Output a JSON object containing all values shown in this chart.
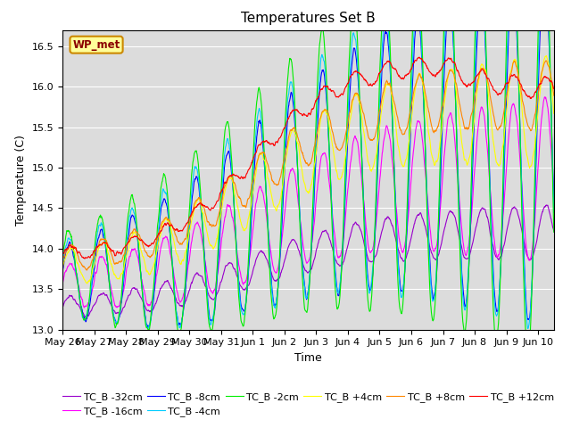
{
  "title": "Temperatures Set B",
  "xlabel": "Time",
  "ylabel": "Temperature (C)",
  "ylim": [
    13.0,
    16.7
  ],
  "xtick_labels": [
    "May 26",
    "May 27",
    "May 28",
    "May 29",
    "May 30",
    "May 31",
    "Jun 1",
    "Jun 2",
    "Jun 3",
    "Jun 4",
    "Jun 5",
    "Jun 6",
    "Jun 7",
    "Jun 8",
    "Jun 9",
    "Jun 10"
  ],
  "series": [
    {
      "label": "TC_B -32cm",
      "color": "#9900cc",
      "base": 13.25,
      "final": 14.2,
      "osc_amp": 0.12,
      "osc_growth": 0.03,
      "delay": 0.0,
      "noise": 0.02
    },
    {
      "label": "TC_B -16cm",
      "color": "#ff00ff",
      "base": 13.5,
      "final": 14.85,
      "osc_amp": 0.25,
      "osc_growth": 0.05,
      "delay": 0.05,
      "noise": 0.03
    },
    {
      "label": "TC_B -8cm",
      "color": "#0000ff",
      "base": 13.55,
      "final": 15.25,
      "osc_amp": 0.42,
      "osc_growth": 0.07,
      "delay": 0.1,
      "noise": 0.04
    },
    {
      "label": "TC_B -4cm",
      "color": "#00ccff",
      "base": 13.6,
      "final": 15.35,
      "osc_amp": 0.45,
      "osc_growth": 0.07,
      "delay": 0.12,
      "noise": 0.04
    },
    {
      "label": "TC_B -2cm",
      "color": "#00ee00",
      "base": 13.65,
      "final": 15.45,
      "osc_amp": 0.48,
      "osc_growth": 0.08,
      "delay": 0.14,
      "noise": 0.04
    },
    {
      "label": "TC_B +4cm",
      "color": "#ffff00",
      "base": 13.7,
      "final": 15.7,
      "osc_amp": 0.2,
      "osc_growth": 0.04,
      "delay": 0.0,
      "noise": 0.03
    },
    {
      "label": "TC_B +8cm",
      "color": "#ff8800",
      "base": 13.8,
      "final": 15.9,
      "osc_amp": 0.15,
      "osc_growth": 0.03,
      "delay": 0.0,
      "noise": 0.03
    },
    {
      "label": "TC_B +12cm",
      "color": "#ff0000",
      "base": 13.9,
      "final": 16.3,
      "osc_amp": 0.08,
      "osc_growth": 0.01,
      "delay": 0.0,
      "noise": 0.025
    }
  ],
  "n_points": 1500,
  "legend_text": "WP_met",
  "legend_box_color": "#ffff99",
  "legend_box_edge": "#cc8800",
  "bg_color": "#dcdcdc",
  "title_fontsize": 11,
  "axis_fontsize": 9,
  "tick_fontsize": 8
}
